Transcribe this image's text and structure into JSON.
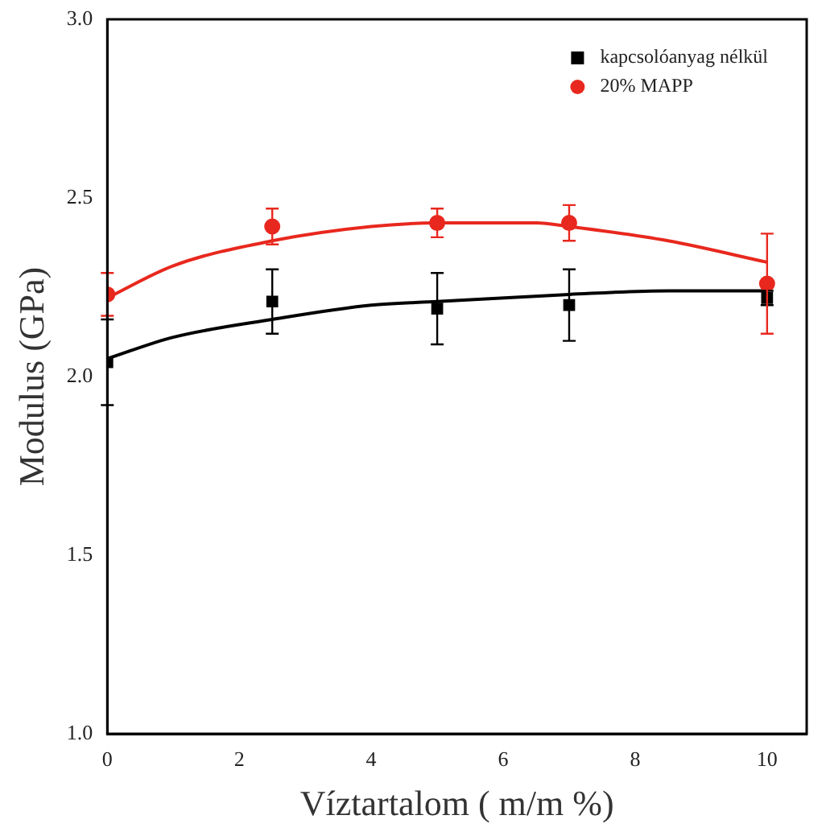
{
  "chart_data": {
    "type": "scatter",
    "xlabel": "Víztartalom ( m/m %)",
    "ylabel": "Modulus (GPa)",
    "xlim": [
      0,
      10.6
    ],
    "xticks": [
      0,
      2,
      4,
      6,
      8,
      10
    ],
    "ylim": [
      1.0,
      3.0
    ],
    "yticks": [
      {
        "value": 1.0,
        "label": "1.0"
      },
      {
        "value": 1.5,
        "label": "1.5"
      },
      {
        "value": 2.0,
        "label": "2.0"
      },
      {
        "value": 2.5,
        "label": "2.5"
      },
      {
        "value": 3.0,
        "label": "3.0"
      }
    ],
    "legend": "top right",
    "grid": false,
    "series": [
      {
        "name": "kapcsolóanyag nélkül",
        "color": "#000000",
        "marker": "square",
        "x": [
          0,
          2.5,
          5,
          7,
          10
        ],
        "values": [
          2.04,
          2.21,
          2.19,
          2.2,
          2.22
        ],
        "errors": [
          0.12,
          0.09,
          0.1,
          0.1,
          0.02
        ]
      },
      {
        "name": "20% MAPP",
        "color": "#e8281e",
        "marker": "circle",
        "x": [
          0,
          2.5,
          5,
          7,
          10
        ],
        "values": [
          2.23,
          2.42,
          2.43,
          2.43,
          2.26
        ],
        "errors": [
          0.06,
          0.05,
          0.04,
          0.05,
          0.14
        ]
      },
      {
        "type": "line",
        "color": "#000000",
        "marker": "none",
        "x": [
          0,
          1,
          2.5,
          4,
          5,
          7,
          8.5,
          10
        ],
        "values": [
          2.05,
          2.11,
          2.16,
          2.2,
          2.21,
          2.23,
          2.24,
          2.24
        ]
      },
      {
        "type": "line",
        "color": "#e8281e",
        "marker": "none",
        "x": [
          0,
          1,
          2.5,
          4,
          5,
          6.5,
          7,
          8.5,
          10
        ],
        "values": [
          2.22,
          2.31,
          2.38,
          2.42,
          2.43,
          2.43,
          2.42,
          2.38,
          2.32
        ]
      }
    ]
  }
}
